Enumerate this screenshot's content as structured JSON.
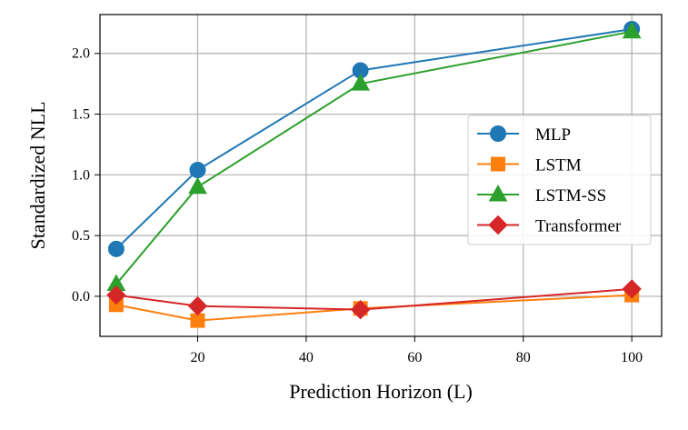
{
  "chart_data": {
    "type": "line",
    "title": "",
    "xlabel": "Prediction Horizon (L)",
    "ylabel": "Standardized NLL",
    "x": [
      5,
      20,
      50,
      100
    ],
    "xlim": [
      2,
      105.5
    ],
    "ylim": [
      -0.33,
      2.32
    ],
    "xticks": [
      20,
      40,
      60,
      80,
      100
    ],
    "xtick_labels": [
      "20",
      "40",
      "60",
      "80",
      "100"
    ],
    "yticks": [
      0.0,
      0.5,
      1.0,
      1.5,
      2.0
    ],
    "ytick_labels": [
      "0.0",
      "0.5",
      "1.0",
      "1.5",
      "2.0"
    ],
    "grid": true,
    "legend_position": "center-right",
    "series": [
      {
        "name": "MLP",
        "values": [
          0.39,
          1.04,
          1.86,
          2.2
        ],
        "color": "#1f77b4",
        "marker": "circle"
      },
      {
        "name": "LSTM",
        "values": [
          -0.07,
          -0.2,
          -0.1,
          0.01
        ],
        "color": "#ff7f0e",
        "marker": "square"
      },
      {
        "name": "LSTM-SS",
        "values": [
          0.1,
          0.9,
          1.75,
          2.18
        ],
        "color": "#2ca02c",
        "marker": "triangle"
      },
      {
        "name": "Transformer",
        "values": [
          0.01,
          -0.08,
          -0.11,
          0.06
        ],
        "color": "#d62728",
        "marker": "diamond"
      }
    ]
  }
}
